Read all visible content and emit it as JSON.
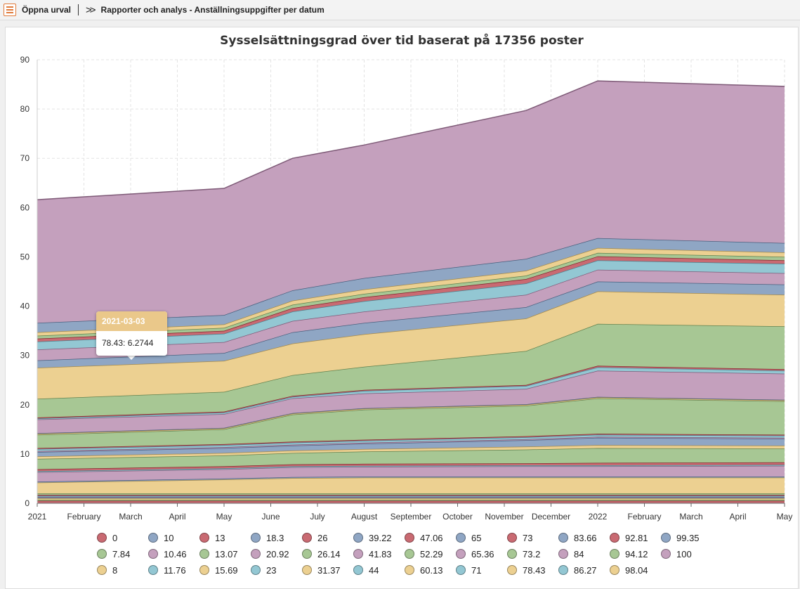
{
  "topbar": {
    "open_selection": "Öppna urval",
    "breadcrumb": "Rapporter och analys - Anställningsuppgifter per datum"
  },
  "colors": {
    "red": "#c96a72",
    "blue": "#8fa6c4",
    "green": "#a7c794",
    "purple": "#c4a0bd",
    "yellow": "#ecd091",
    "teal": "#93c7d3"
  },
  "tooltip": {
    "date": "2021-03-03",
    "value": "78.43: 6.2744"
  },
  "chart_data": {
    "type": "area",
    "stacked": true,
    "title": "Sysselsättningsgrad över tid baserat på 17356 poster",
    "xlabel": "",
    "ylabel": "",
    "ylim": [
      0,
      90
    ],
    "yticks": [
      0,
      10,
      20,
      30,
      40,
      50,
      60,
      70,
      80,
      90
    ],
    "x_start": "2021-01",
    "x_end": "2022-05",
    "xtick_labels": [
      "2021",
      "February",
      "March",
      "April",
      "May",
      "June",
      "July",
      "August",
      "September",
      "October",
      "November",
      "December",
      "2022",
      "February",
      "March",
      "April",
      "May"
    ],
    "grid": true,
    "legend_position": "bottom",
    "key_dates": [
      "2021-01",
      "2021-05",
      "2021-06-15",
      "2021-08",
      "2021-11-15",
      "2022-01",
      "2022-05"
    ],
    "series": [
      {
        "name": "0",
        "values": [
          0.5,
          0.5,
          0.5,
          0.5,
          0.5,
          0.5,
          0.5
        ]
      },
      {
        "name": "7.84",
        "values": [
          0.2,
          0.2,
          0.2,
          0.2,
          0.2,
          0.2,
          0.2
        ]
      },
      {
        "name": "8",
        "values": [
          0.3,
          0.3,
          0.3,
          0.3,
          0.3,
          0.3,
          0.3
        ]
      },
      {
        "name": "10",
        "values": [
          0.2,
          0.2,
          0.2,
          0.2,
          0.2,
          0.2,
          0.2
        ]
      },
      {
        "name": "10.46",
        "values": [
          0.1,
          0.1,
          0.1,
          0.1,
          0.1,
          0.1,
          0.1
        ]
      },
      {
        "name": "11.76",
        "values": [
          0.2,
          0.2,
          0.2,
          0.2,
          0.2,
          0.2,
          0.2
        ]
      },
      {
        "name": "13",
        "values": [
          0.2,
          0.2,
          0.2,
          0.2,
          0.2,
          0.2,
          0.2
        ]
      },
      {
        "name": "13.07",
        "values": [
          0.3,
          0.3,
          0.3,
          0.3,
          0.3,
          0.3,
          0.3
        ]
      },
      {
        "name": "15.69",
        "values": [
          2.2,
          2.8,
          3.1,
          3.2,
          3.2,
          3.2,
          3.2
        ]
      },
      {
        "name": "18.3",
        "values": [
          0.2,
          0.2,
          0.2,
          0.2,
          0.2,
          0.2,
          0.2
        ]
      },
      {
        "name": "20.92",
        "values": [
          1.9,
          1.9,
          2.0,
          2.0,
          2.1,
          2.1,
          2.2
        ]
      },
      {
        "name": "23",
        "values": [
          0.2,
          0.2,
          0.2,
          0.2,
          0.2,
          0.2,
          0.2
        ]
      },
      {
        "name": "26",
        "values": [
          0.4,
          0.4,
          0.4,
          0.4,
          0.4,
          0.5,
          0.5
        ]
      },
      {
        "name": "26.14",
        "values": [
          2.1,
          2.2,
          2.3,
          2.5,
          2.8,
          3.0,
          2.8
        ]
      },
      {
        "name": "31.37",
        "values": [
          0.5,
          0.5,
          0.5,
          0.5,
          0.6,
          0.6,
          0.6
        ]
      },
      {
        "name": "39.22",
        "values": [
          0.9,
          1.0,
          1.0,
          1.1,
          1.3,
          1.5,
          1.4
        ]
      },
      {
        "name": "41.83",
        "values": [
          0.2,
          0.2,
          0.2,
          0.2,
          0.2,
          0.2,
          0.2
        ]
      },
      {
        "name": "44",
        "values": [
          0.4,
          0.4,
          0.4,
          0.4,
          0.4,
          0.4,
          0.4
        ]
      },
      {
        "name": "47.06",
        "values": [
          0.2,
          0.2,
          0.2,
          0.2,
          0.2,
          0.2,
          0.2
        ]
      },
      {
        "name": "52.29",
        "values": [
          2.7,
          3.0,
          5.5,
          6.1,
          6.2,
          7.2,
          6.8
        ]
      },
      {
        "name": "60.13",
        "values": [
          0.2,
          0.2,
          0.2,
          0.2,
          0.2,
          0.2,
          0.2
        ]
      },
      {
        "name": "65",
        "values": [
          0.1,
          0.1,
          0.1,
          0.1,
          0.1,
          0.1,
          0.1
        ]
      },
      {
        "name": "65.36",
        "values": [
          2.8,
          2.8,
          3.0,
          3.0,
          3.1,
          5.3,
          5.3
        ]
      },
      {
        "name": "71",
        "values": [
          0.2,
          0.3,
          0.3,
          0.5,
          0.6,
          0.7,
          0.6
        ]
      },
      {
        "name": "73",
        "values": [
          0.2,
          0.2,
          0.2,
          0.2,
          0.2,
          0.3,
          0.3
        ]
      },
      {
        "name": "73.2",
        "values": [
          3.8,
          4.0,
          4.2,
          4.7,
          6.9,
          8.5,
          8.7
        ]
      },
      {
        "name": "78.43",
        "values": [
          6.3,
          6.3,
          6.4,
          6.6,
          6.6,
          6.6,
          6.4
        ]
      },
      {
        "name": "83.66",
        "values": [
          1.5,
          1.6,
          2.3,
          2.3,
          2.3,
          2.0,
          2.1
        ]
      },
      {
        "name": "84",
        "values": [
          2.2,
          2.2,
          2.3,
          2.3,
          2.5,
          2.4,
          2.3
        ]
      },
      {
        "name": "86.27",
        "values": [
          1.6,
          1.7,
          1.9,
          2.1,
          2.3,
          1.9,
          1.9
        ]
      },
      {
        "name": "92.81",
        "values": [
          0.6,
          0.6,
          0.7,
          0.8,
          0.9,
          0.8,
          0.7
        ]
      },
      {
        "name": "94.12",
        "values": [
          0.6,
          0.6,
          0.7,
          0.7,
          0.7,
          0.7,
          0.7
        ]
      },
      {
        "name": "98.04",
        "values": [
          0.7,
          0.7,
          0.8,
          0.9,
          1.0,
          1.0,
          0.9
        ]
      },
      {
        "name": "99.35",
        "values": [
          1.9,
          1.9,
          2.1,
          2.3,
          2.4,
          2.0,
          1.9
        ]
      },
      {
        "name": "100",
        "values": [
          25.0,
          25.7,
          26.8,
          27.0,
          30.1,
          31.9,
          31.8
        ]
      }
    ]
  },
  "legend_rows": [
    [
      "0",
      "10",
      "13",
      "18.3",
      "26",
      "39.22",
      "47.06",
      "65",
      "73",
      "83.66",
      "92.81",
      "99.35"
    ],
    [
      "7.84",
      "10.46",
      "13.07",
      "20.92",
      "26.14",
      "41.83",
      "52.29",
      "65.36",
      "73.2",
      "84",
      "94.12",
      "100"
    ],
    [
      "8",
      "11.76",
      "15.69",
      "23",
      "31.37",
      "44",
      "60.13",
      "71",
      "78.43",
      "86.27",
      "98.04"
    ]
  ],
  "series_colors": {
    "0": "red",
    "10": "blue",
    "13": "red",
    "18.3": "blue",
    "26": "red",
    "39.22": "blue",
    "47.06": "red",
    "65": "blue",
    "73": "red",
    "83.66": "blue",
    "92.81": "red",
    "99.35": "blue",
    "7.84": "green",
    "10.46": "purple",
    "13.07": "green",
    "20.92": "purple",
    "26.14": "green",
    "41.83": "purple",
    "52.29": "green",
    "65.36": "purple",
    "73.2": "green",
    "84": "purple",
    "94.12": "green",
    "100": "purple",
    "8": "yellow",
    "11.76": "teal",
    "15.69": "yellow",
    "23": "teal",
    "31.37": "yellow",
    "44": "teal",
    "60.13": "yellow",
    "71": "teal",
    "78.43": "yellow",
    "86.27": "teal",
    "98.04": "yellow"
  }
}
